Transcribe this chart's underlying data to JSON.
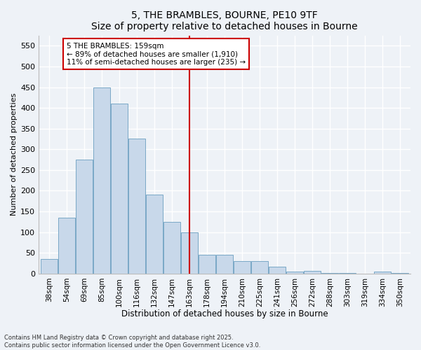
{
  "title": "5, THE BRAMBLES, BOURNE, PE10 9TF",
  "subtitle": "Size of property relative to detached houses in Bourne",
  "xlabel": "Distribution of detached houses by size in Bourne",
  "ylabel": "Number of detached properties",
  "categories": [
    "38sqm",
    "54sqm",
    "69sqm",
    "85sqm",
    "100sqm",
    "116sqm",
    "132sqm",
    "147sqm",
    "163sqm",
    "178sqm",
    "194sqm",
    "210sqm",
    "225sqm",
    "241sqm",
    "256sqm",
    "272sqm",
    "288sqm",
    "303sqm",
    "319sqm",
    "334sqm",
    "350sqm"
  ],
  "values": [
    35,
    135,
    275,
    450,
    410,
    325,
    190,
    125,
    100,
    45,
    45,
    30,
    30,
    17,
    5,
    7,
    2,
    2,
    0,
    5,
    2
  ],
  "bar_color": "#c8d8ea",
  "bar_edge_color": "#6a9ec0",
  "vline_x_idx": 8,
  "vline_color": "#cc0000",
  "annotation_text": "5 THE BRAMBLES: 159sqm\n← 89% of detached houses are smaller (1,910)\n11% of semi-detached houses are larger (235) →",
  "annotation_box_color": "#cc0000",
  "ylim": [
    0,
    575
  ],
  "yticks": [
    0,
    50,
    100,
    150,
    200,
    250,
    300,
    350,
    400,
    450,
    500,
    550
  ],
  "background_color": "#eef2f7",
  "grid_color": "#ffffff",
  "footer": "Contains HM Land Registry data © Crown copyright and database right 2025.\nContains public sector information licensed under the Open Government Licence v3.0."
}
